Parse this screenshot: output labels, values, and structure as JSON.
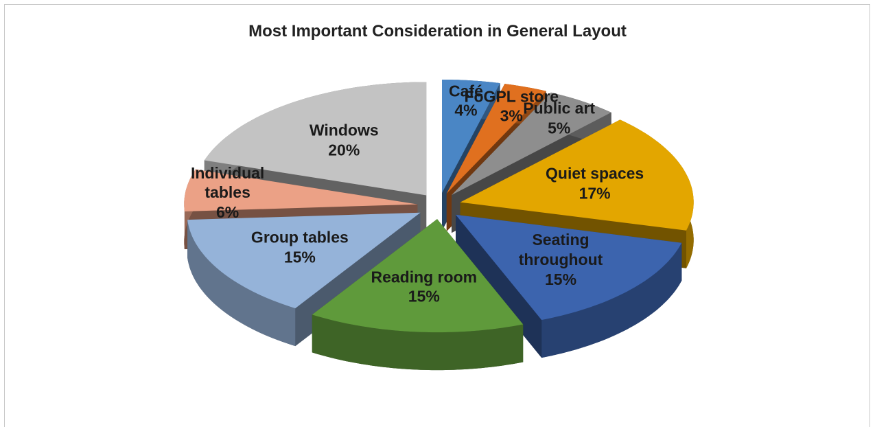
{
  "chart_data": {
    "type": "pie3d",
    "title": "Most Important Consideration in General Layout",
    "categories": [
      "Café",
      "FoGPL store",
      "Public art",
      "Quiet spaces",
      "Seating throughout",
      "Reading room",
      "Group tables",
      "Individual tables",
      "Windows"
    ],
    "values": [
      4,
      3,
      5,
      17,
      15,
      15,
      15,
      6,
      20
    ],
    "value_labels": [
      "4%",
      "3%",
      "5%",
      "17%",
      "15%",
      "15%",
      "15%",
      "6%",
      "20%"
    ],
    "colors": [
      "#4a86c5",
      "#e0701f",
      "#8e8e8e",
      "#e3a600",
      "#3c64ae",
      "#5f9a3b",
      "#95b3d9",
      "#eba186",
      "#c3c3c3"
    ]
  }
}
